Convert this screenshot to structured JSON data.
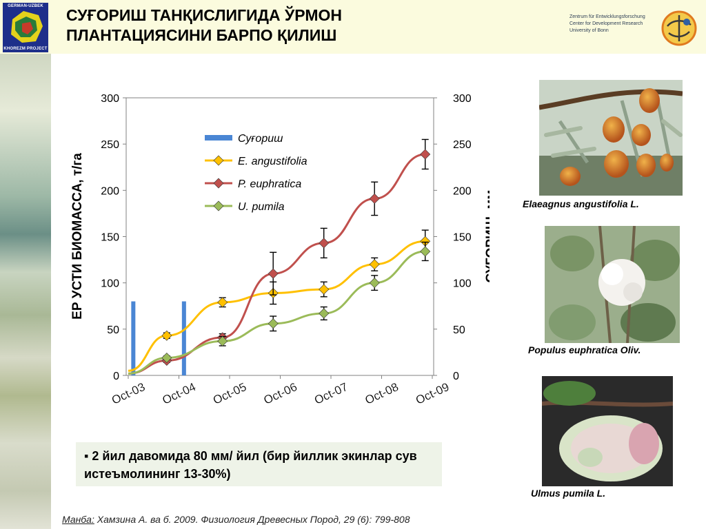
{
  "slide": {
    "title_line1": "СУҒОРИШ ТАНҚИСЛИГИДА ЎРМОН",
    "title_line2": "ПЛАНТАЦИЯСИНИ БАРПО ҚИЛИШ",
    "logo_left": {
      "line1": "GERMAN-UZBEK",
      "line2": "KHOREZM PROJECT"
    },
    "zef": {
      "line1": "Zentrum für Entwicklungsforschung",
      "line2": "Center for Development Research",
      "line3": "University of Bonn"
    },
    "callout": "▪ 2 йил давомида 80 мм/ йил (бир йиллик экинлар сув истеъмолининг 13-30%)",
    "source_prefix": "Манба:",
    "source_text": " Хамзина А. ва б. 2009. Физиология Древесных Пород, 29 (6): 799-808",
    "species": [
      {
        "name": "Elaeagnus angustifolia L.",
        "icon": "oleaster-fruit-photo"
      },
      {
        "name": "Populus euphratica Oliv.",
        "icon": "poplar-seed-fluff-photo"
      },
      {
        "name": "Ulmus pumila L.",
        "icon": "elm-samara-photo"
      }
    ]
  },
  "chart_data": {
    "type": "line",
    "ylabel": "ЕР УСТИ БИОМАССА, т/га",
    "y2label": "СУҒОРИШ, мм",
    "ylim": [
      0,
      300
    ],
    "y2lim": [
      0,
      300
    ],
    "yticks": [
      0,
      50,
      100,
      150,
      200,
      250,
      300
    ],
    "categories": [
      "Oct-03",
      "Oct-04",
      "Oct-05",
      "Oct-06",
      "Oct-07",
      "Oct-08",
      "Oct-09"
    ],
    "legend_position": "upper-left",
    "grid": false,
    "irrigation": {
      "name": "Суғориш",
      "type": "bar",
      "color": "#4a86d4",
      "points": [
        {
          "x": 0.1,
          "value": 80
        },
        {
          "x": 1.1,
          "value": 80
        }
      ]
    },
    "series": [
      {
        "name": "E. angustifolia",
        "color": "#ffc000",
        "x": [
          0,
          0.76,
          1.86,
          2.86,
          3.86,
          4.86,
          5.86
        ],
        "values": [
          5,
          43,
          79,
          89,
          93,
          120,
          145
        ],
        "err": [
          0,
          3,
          5,
          12,
          8,
          7,
          12
        ]
      },
      {
        "name": "P. euphratica",
        "color": "#c0504d",
        "x": [
          0,
          0.76,
          1.86,
          2.86,
          3.86,
          4.86,
          5.86
        ],
        "values": [
          2,
          16,
          41,
          110,
          143,
          191,
          239
        ],
        "err": [
          0,
          2,
          4,
          23,
          16,
          18,
          16
        ]
      },
      {
        "name": "U. pumila",
        "color": "#9bbb59",
        "x": [
          0,
          0.76,
          1.86,
          2.86,
          3.86,
          4.86,
          5.86
        ],
        "values": [
          2,
          19,
          37,
          56,
          67,
          100,
          134
        ],
        "err": [
          0,
          2,
          5,
          8,
          7,
          8,
          10
        ]
      }
    ]
  }
}
